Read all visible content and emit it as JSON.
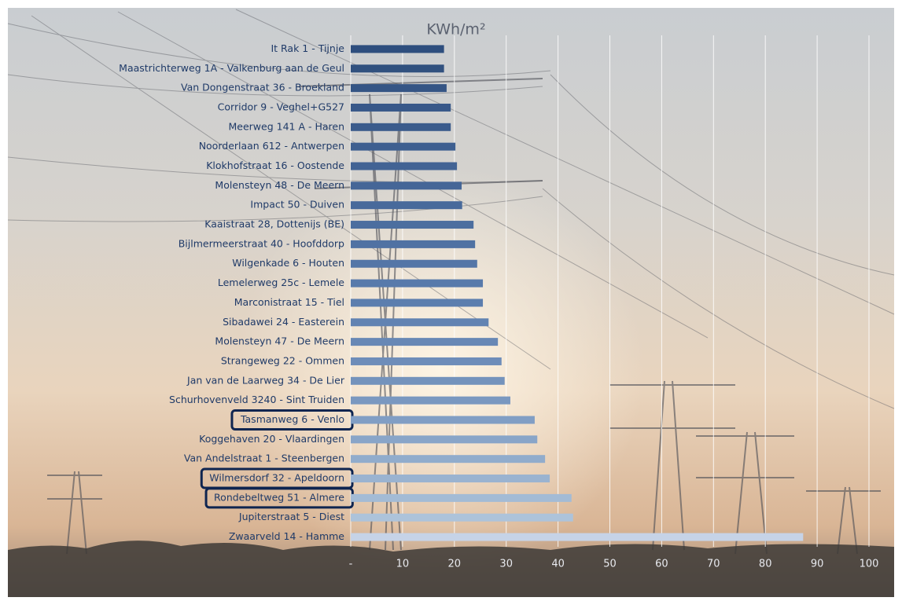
{
  "chart_data": {
    "type": "hbar",
    "title": "KWh/m²",
    "categories": [
      "It Rak 1 - Tijnje",
      "Maastrichterweg 1A - Valkenburg aan de Geul",
      "Van Dongenstraat 36 - Broekland",
      "Corridor 9 - Veghel+G527",
      "Meerweg 141 A - Haren",
      "Noorderlaan 612 - Antwerpen",
      "Klokhofstraat 16 - Oostende",
      "Molensteyn 48 - De Meern",
      "Impact 50 - Duiven",
      "Kaaistraat 28, Dottenijs (BE)",
      "Bijlmermeerstraat 40 - Hoofddorp",
      "Wilgenkade 6 - Houten",
      "Lemelerweg 25c - Lemele",
      "Marconistraat 15 - Tiel",
      "Sibadawei 24 - Easterein",
      "Molensteyn 47 - De Meern",
      "Strangeweg 22 - Ommen",
      "Jan van de Laarweg 34 - De Lier",
      "Schurhovenveld 3240 - Sint Truiden",
      "Tasmanweg 6 - Venlo",
      "Koggehaven 20 - Vlaardingen",
      "Van Andelstraat 1 - Steenbergen",
      "Wilmersdorf 32 - Apeldoorn",
      "Rondebeltweg 51 - Almere",
      "Jupiterstraat 5 - Diest",
      "Zwaarveld 14 - Hamme"
    ],
    "values": [
      18,
      18,
      18.5,
      19.3,
      19.3,
      20.2,
      20.5,
      21.4,
      21.5,
      23.7,
      24,
      24.4,
      25.5,
      25.5,
      26.6,
      28.4,
      29.1,
      29.7,
      30.8,
      35.5,
      36,
      37.5,
      38.4,
      42.6,
      42.9,
      87.3
    ],
    "colors": [
      "#2e4e7e",
      "#31517f",
      "#355585",
      "#385889",
      "#3b5b8c",
      "#3e5f90",
      "#426394",
      "#456697",
      "#486a9b",
      "#4c6e9f",
      "#5072a3",
      "#5476a7",
      "#587aab",
      "#5c7eae",
      "#6283b2",
      "#6888b5",
      "#6e8db9",
      "#7493bc",
      "#7a98c0",
      "#819ec4",
      "#89a5c8",
      "#91accc",
      "#9ab3d0",
      "#a3bbd5",
      "#adc3da",
      "#c6d3e7"
    ],
    "highlight_indices": [
      19,
      22,
      23
    ],
    "xlim": [
      0,
      100
    ],
    "xticks": [
      {
        "value": 0,
        "label": "-"
      },
      10,
      20,
      30,
      40,
      50,
      60,
      70,
      80,
      90,
      100
    ],
    "grid": true
  }
}
